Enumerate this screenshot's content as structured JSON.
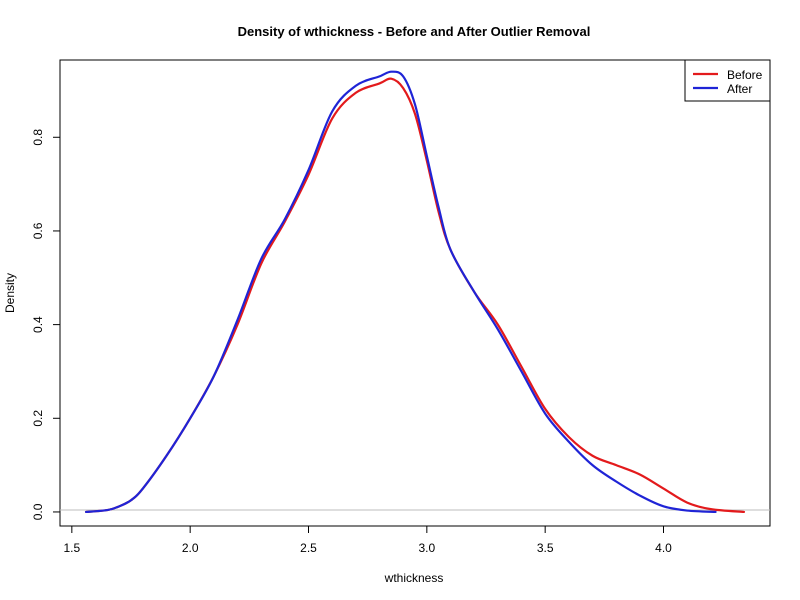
{
  "chart_data": {
    "type": "line",
    "title": "Density of wthickness - Before and After Outlier Removal",
    "xlabel": "wthickness",
    "ylabel": "Density",
    "xlim": [
      1.45,
      4.45
    ],
    "ylim": [
      -0.03,
      0.965
    ],
    "xticks": [
      1.5,
      2.0,
      2.5,
      3.0,
      3.5,
      4.0
    ],
    "xtick_labels": [
      "1.5",
      "2.0",
      "2.5",
      "3.0",
      "3.5",
      "4.0"
    ],
    "yticks": [
      0.0,
      0.2,
      0.4,
      0.6,
      0.8
    ],
    "ytick_labels": [
      "0.0",
      "0.2",
      "0.4",
      "0.6",
      "0.8"
    ],
    "grid": false,
    "legend_position": "top-right",
    "series": [
      {
        "name": "Before",
        "color": "#e31a1c",
        "x": [
          1.56,
          1.65,
          1.7,
          1.75,
          1.8,
          1.9,
          2.0,
          2.1,
          2.2,
          2.3,
          2.4,
          2.5,
          2.6,
          2.7,
          2.8,
          2.85,
          2.9,
          2.95,
          3.0,
          3.05,
          3.1,
          3.2,
          3.3,
          3.4,
          3.5,
          3.6,
          3.7,
          3.8,
          3.9,
          4.0,
          4.1,
          4.2,
          4.34
        ],
        "y": [
          0.0,
          0.004,
          0.012,
          0.025,
          0.05,
          0.12,
          0.2,
          0.29,
          0.4,
          0.53,
          0.62,
          0.72,
          0.84,
          0.895,
          0.915,
          0.925,
          0.905,
          0.85,
          0.75,
          0.64,
          0.56,
          0.47,
          0.4,
          0.31,
          0.22,
          0.16,
          0.12,
          0.1,
          0.08,
          0.05,
          0.02,
          0.006,
          0.0
        ]
      },
      {
        "name": "After",
        "color": "#1f24d6",
        "x": [
          1.56,
          1.65,
          1.7,
          1.75,
          1.8,
          1.9,
          2.0,
          2.1,
          2.2,
          2.3,
          2.4,
          2.5,
          2.6,
          2.7,
          2.8,
          2.85,
          2.9,
          2.95,
          3.0,
          3.05,
          3.1,
          3.2,
          3.3,
          3.4,
          3.5,
          3.6,
          3.7,
          3.8,
          3.9,
          4.0,
          4.1,
          4.22
        ],
        "y": [
          0.0,
          0.004,
          0.012,
          0.025,
          0.05,
          0.12,
          0.2,
          0.29,
          0.41,
          0.54,
          0.625,
          0.73,
          0.855,
          0.91,
          0.93,
          0.94,
          0.93,
          0.87,
          0.76,
          0.65,
          0.56,
          0.47,
          0.39,
          0.3,
          0.21,
          0.15,
          0.1,
          0.065,
          0.035,
          0.012,
          0.003,
          0.0
        ]
      }
    ]
  }
}
